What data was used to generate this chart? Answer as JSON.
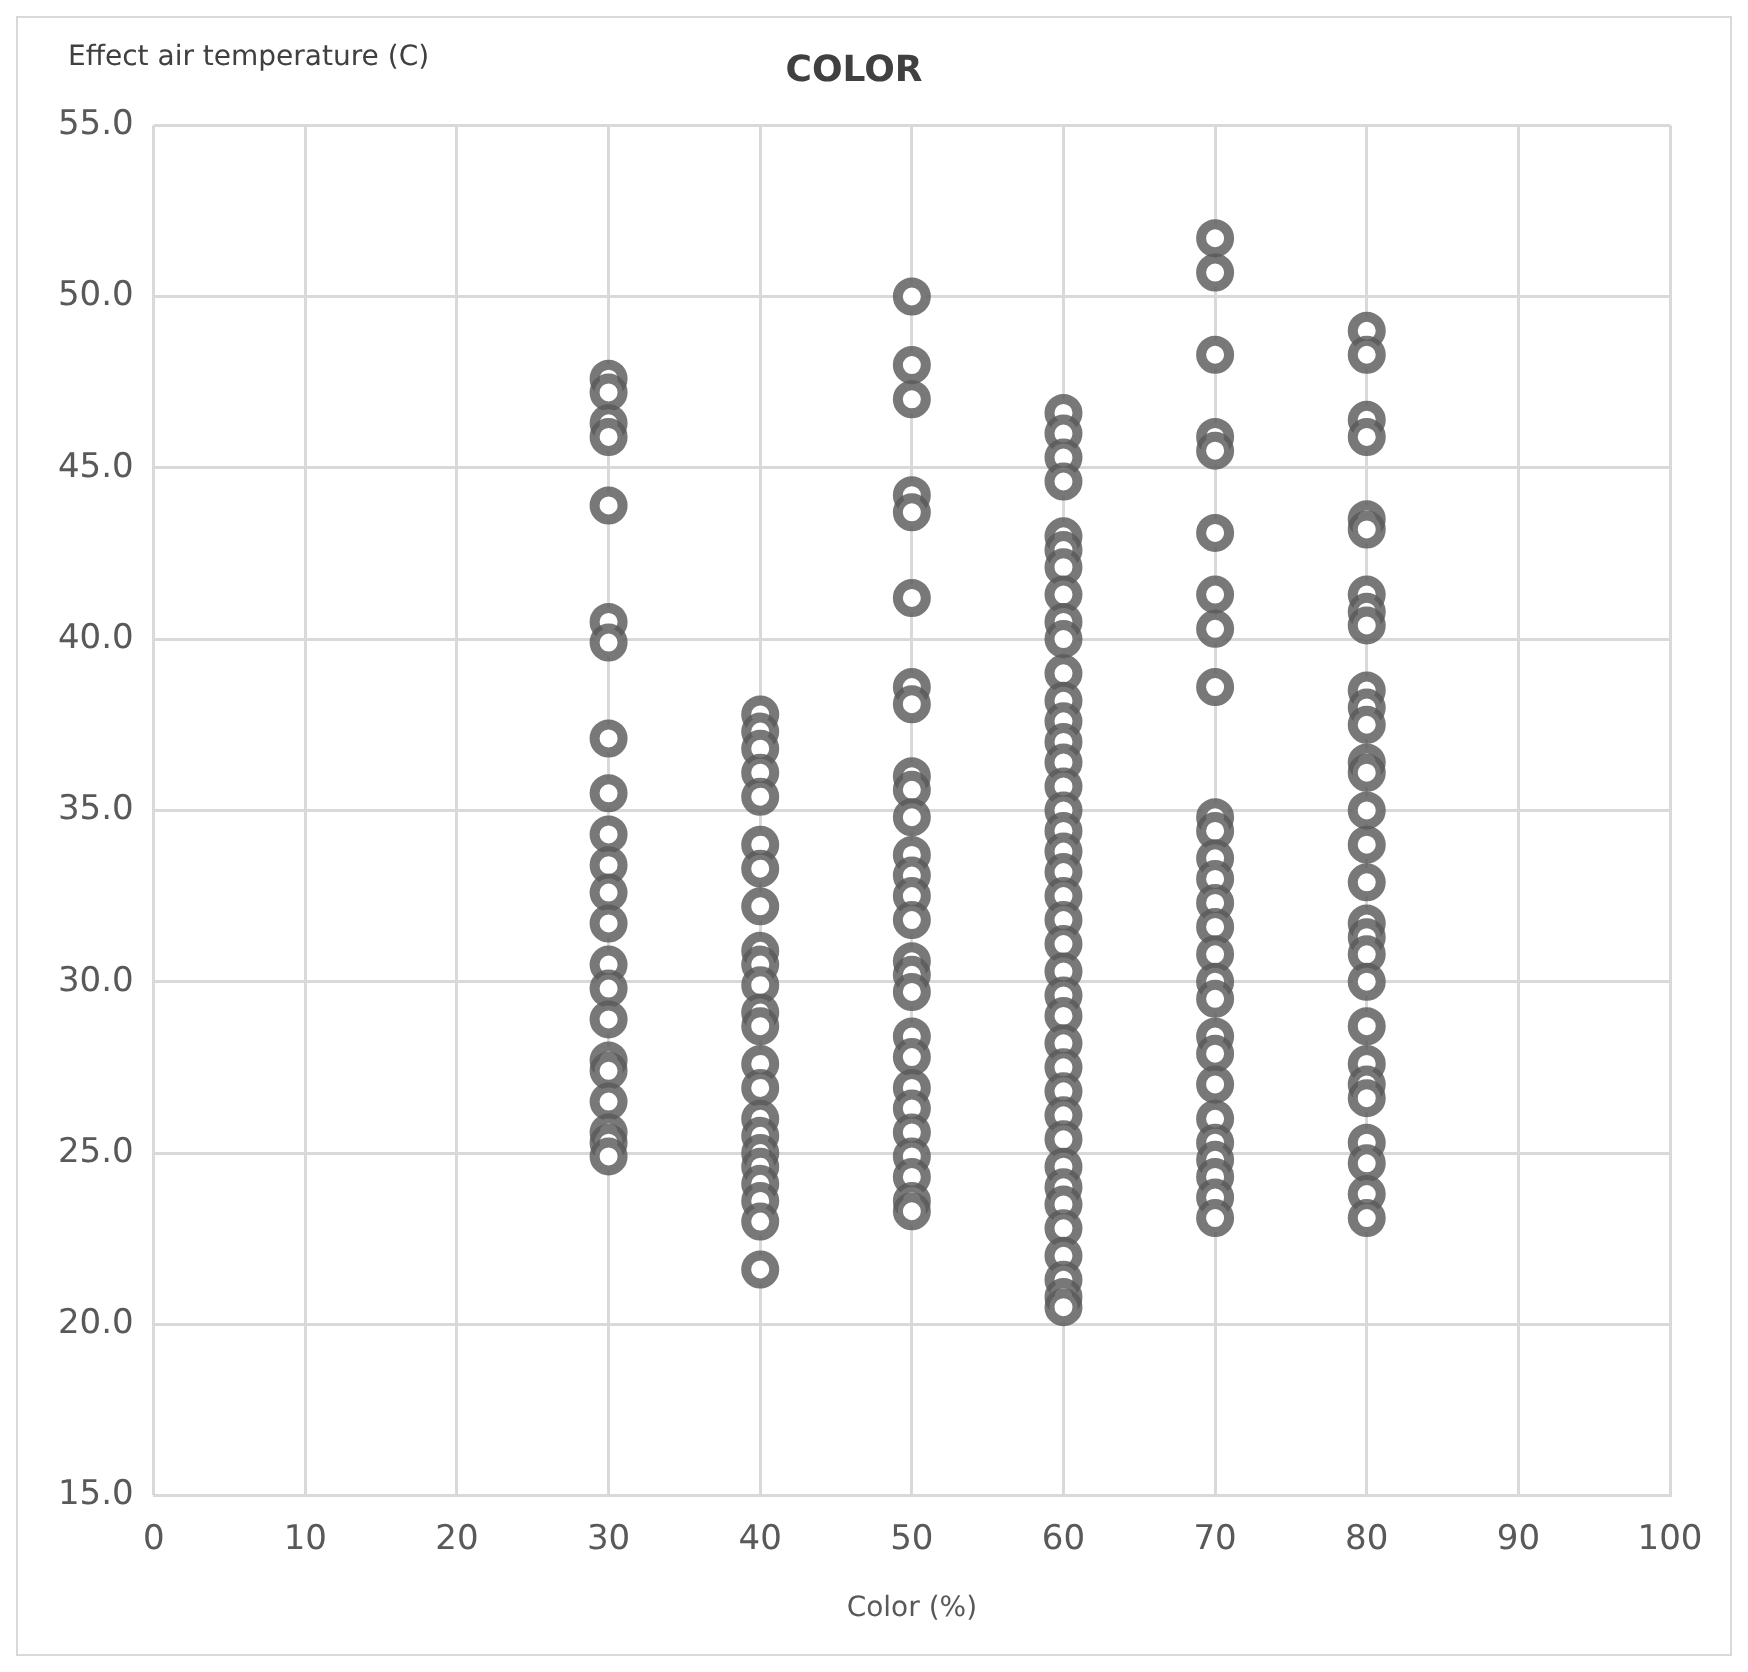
{
  "chart_data": {
    "type": "scatter",
    "title": "COLOR",
    "xlabel": "Color (%)",
    "ylabel": "Effect air temperature (C)",
    "xlim": [
      0,
      100
    ],
    "xticks": [
      0,
      10,
      20,
      30,
      40,
      50,
      60,
      70,
      80,
      90,
      100
    ],
    "ylim": [
      15,
      55
    ],
    "yticks": [
      {
        "value": 15,
        "label": "15.0"
      },
      {
        "value": 20,
        "label": "20.0"
      },
      {
        "value": 25,
        "label": "25.0"
      },
      {
        "value": 30,
        "label": "30.0"
      },
      {
        "value": 35,
        "label": "35.0"
      },
      {
        "value": 40,
        "label": "40.0"
      },
      {
        "value": 45,
        "label": "45.0"
      },
      {
        "value": 50,
        "label": "50.0"
      },
      {
        "value": 55,
        "label": "55.0"
      }
    ],
    "grid": true,
    "legend": false,
    "marker": "circle",
    "series": [
      {
        "color": "#595959",
        "x": [
          30,
          30,
          30,
          30,
          30,
          30,
          30,
          30,
          30,
          30,
          30,
          30,
          30,
          30,
          30,
          30,
          30,
          30,
          30,
          30,
          30,
          30,
          40,
          40,
          40,
          40,
          40,
          40,
          40,
          40,
          40,
          40,
          40,
          40,
          40,
          40,
          40,
          40,
          40,
          40,
          40,
          40,
          40,
          40,
          40,
          50,
          50,
          50,
          50,
          50,
          50,
          50,
          50,
          50,
          50,
          50,
          50,
          50,
          50,
          50,
          50,
          50,
          50,
          50,
          50,
          50,
          50,
          50,
          50,
          50,
          50,
          50,
          60,
          60,
          60,
          60,
          60,
          60,
          60,
          60,
          60,
          60,
          60,
          60,
          60,
          60,
          60,
          60,
          60,
          60,
          60,
          60,
          60,
          60,
          60,
          60,
          60,
          60,
          60,
          60,
          60,
          60,
          60,
          60,
          60,
          60,
          60,
          60,
          60,
          60,
          60,
          70,
          70,
          70,
          70,
          70,
          70,
          70,
          70,
          70,
          70,
          70,
          70,
          70,
          70,
          70,
          70,
          70,
          70,
          70,
          70,
          70,
          70,
          70,
          70,
          70,
          70,
          70,
          80,
          80,
          80,
          80,
          80,
          80,
          80,
          80,
          80,
          80,
          80,
          80,
          80,
          80,
          80,
          80,
          80,
          80,
          80,
          80,
          80,
          80,
          80,
          80,
          80,
          80,
          80,
          80,
          80
        ],
        "values": [
          47.6,
          47.2,
          46.3,
          45.9,
          43.9,
          40.5,
          39.9,
          37.1,
          35.5,
          34.3,
          33.4,
          32.6,
          31.7,
          30.5,
          29.8,
          28.9,
          27.7,
          27.4,
          26.5,
          25.6,
          25.3,
          24.9,
          37.8,
          37.3,
          36.8,
          36.1,
          35.4,
          34.0,
          33.3,
          32.2,
          30.9,
          30.5,
          29.9,
          29.1,
          28.7,
          27.6,
          26.9,
          26.0,
          25.5,
          25.0,
          24.6,
          24.1,
          23.6,
          23.0,
          21.6,
          50.0,
          48.0,
          47.0,
          44.2,
          43.7,
          41.2,
          38.6,
          38.1,
          36.0,
          35.6,
          34.8,
          33.7,
          33.1,
          32.5,
          31.8,
          30.6,
          30.2,
          29.7,
          28.4,
          27.8,
          26.9,
          26.3,
          25.6,
          24.9,
          24.3,
          23.6,
          23.3,
          46.6,
          46.0,
          45.3,
          44.6,
          43.0,
          42.6,
          42.1,
          41.3,
          40.5,
          40.0,
          39.0,
          38.2,
          37.6,
          37.0,
          36.4,
          35.7,
          35.0,
          34.4,
          33.8,
          33.2,
          32.5,
          31.8,
          31.1,
          30.3,
          29.6,
          29.0,
          28.2,
          27.5,
          26.8,
          26.1,
          25.4,
          24.6,
          24.0,
          23.5,
          22.8,
          22.0,
          21.3,
          20.8,
          20.5,
          51.7,
          50.7,
          48.3,
          45.9,
          45.5,
          43.1,
          41.3,
          40.3,
          38.6,
          34.8,
          34.4,
          33.6,
          33.0,
          32.3,
          31.6,
          30.8,
          30.0,
          29.5,
          28.4,
          27.9,
          27.0,
          26.0,
          25.3,
          24.8,
          24.3,
          23.7,
          23.1,
          49.0,
          48.3,
          46.4,
          45.9,
          43.5,
          43.2,
          41.3,
          40.8,
          40.4,
          38.5,
          38.0,
          37.5,
          36.4,
          36.1,
          35.0,
          34.0,
          32.9,
          31.7,
          31.3,
          30.8,
          30.0,
          28.7,
          27.6,
          27.0,
          26.6,
          25.3,
          24.7,
          23.8,
          23.1
        ]
      }
    ]
  }
}
